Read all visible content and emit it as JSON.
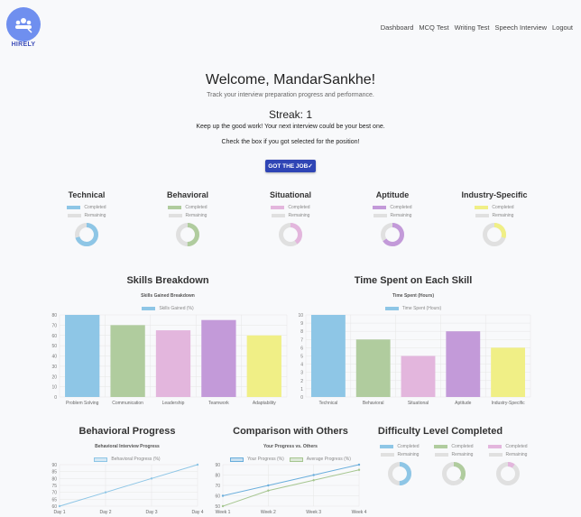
{
  "brand": {
    "name": "HIRELY",
    "logo_color": "#6f8fef"
  },
  "nav": [
    "Dashboard",
    "MCQ Test",
    "Writing Test",
    "Speech Interview",
    "Logout"
  ],
  "welcome": {
    "title": "Welcome, MandarSankhe!",
    "subtitle": "Track your interview preparation progress and performance.",
    "streak": "Streak: 1",
    "encourage": "Keep up the good work! Your next interview could be your best one.",
    "check": "Check the box if you got selected for the position!",
    "button": "GOT THE JOB✓"
  },
  "legend": {
    "completed": "Completed",
    "remaining": "Remaining"
  },
  "categories": [
    {
      "title": "Technical",
      "completed_pct": 70,
      "color": "#8ec6e6"
    },
    {
      "title": "Behavioral",
      "completed_pct": 50,
      "color": "#b0cc9e"
    },
    {
      "title": "Situational",
      "completed_pct": 40,
      "color": "#e3b6dd"
    },
    {
      "title": "Aptitude",
      "completed_pct": 65,
      "color": "#c39ad9"
    },
    {
      "title": "Industry-Specific",
      "completed_pct": 30,
      "color": "#f0ef86"
    }
  ],
  "difficulty": {
    "title": "Difficulty Level Completed",
    "items": [
      {
        "completed_pct": 50,
        "color": "#8ec6e6"
      },
      {
        "completed_pct": 35,
        "color": "#b0cc9e"
      },
      {
        "completed_pct": 10,
        "color": "#e3b6dd"
      }
    ]
  },
  "chart_data": [
    {
      "type": "bar",
      "section_title": "Skills Breakdown",
      "title": "Skills Gained Breakdown",
      "legend": "Skills Gained (%)",
      "categories": [
        "Problem Solving",
        "Communication",
        "Leadership",
        "Teamwork",
        "Adaptability"
      ],
      "values": [
        80,
        70,
        65,
        75,
        60
      ],
      "ylim": [
        0,
        80
      ],
      "ystep": 10,
      "colors": [
        "#8ec6e6",
        "#b0cc9e",
        "#e3b6dd",
        "#c39ad9",
        "#f0ef86"
      ],
      "grid": true
    },
    {
      "type": "bar",
      "section_title": "Time Spent on Each Skill",
      "title": "Time Spent (Hours)",
      "legend": "Time Spent (Hours)",
      "categories": [
        "Technical",
        "Behavioral",
        "Situational",
        "Aptitude",
        "Industry-Specific"
      ],
      "values": [
        10,
        7,
        5,
        8,
        6
      ],
      "ylim": [
        0,
        10
      ],
      "ystep": 1,
      "colors": [
        "#8ec6e6",
        "#b0cc9e",
        "#e3b6dd",
        "#c39ad9",
        "#f0ef86"
      ],
      "grid": true
    },
    {
      "type": "line",
      "section_title": "Behavioral Progress",
      "title": "Behavioral Interview Progress",
      "categories": [
        "Day 1",
        "Day 2",
        "Day 3",
        "Day 4"
      ],
      "series": [
        {
          "name": "Behavioral Progress (%)",
          "values": [
            60,
            70,
            80,
            90
          ],
          "color": "#8ec6e6"
        }
      ],
      "ylim": [
        60,
        90
      ],
      "ystep": 5,
      "grid": true
    },
    {
      "type": "line",
      "section_title": "Comparison with Others",
      "title": "Your Progress vs. Others",
      "categories": [
        "Week 1",
        "Week 2",
        "Week 3",
        "Week 4"
      ],
      "series": [
        {
          "name": "Your Progress (%)",
          "values": [
            60,
            70,
            80,
            90
          ],
          "color": "#6aaedc"
        },
        {
          "name": "Average Progress (%)",
          "values": [
            50,
            65,
            75,
            85
          ],
          "color": "#a6c690"
        }
      ],
      "ylim": [
        50,
        90
      ],
      "ystep": 10,
      "grid": true
    }
  ]
}
